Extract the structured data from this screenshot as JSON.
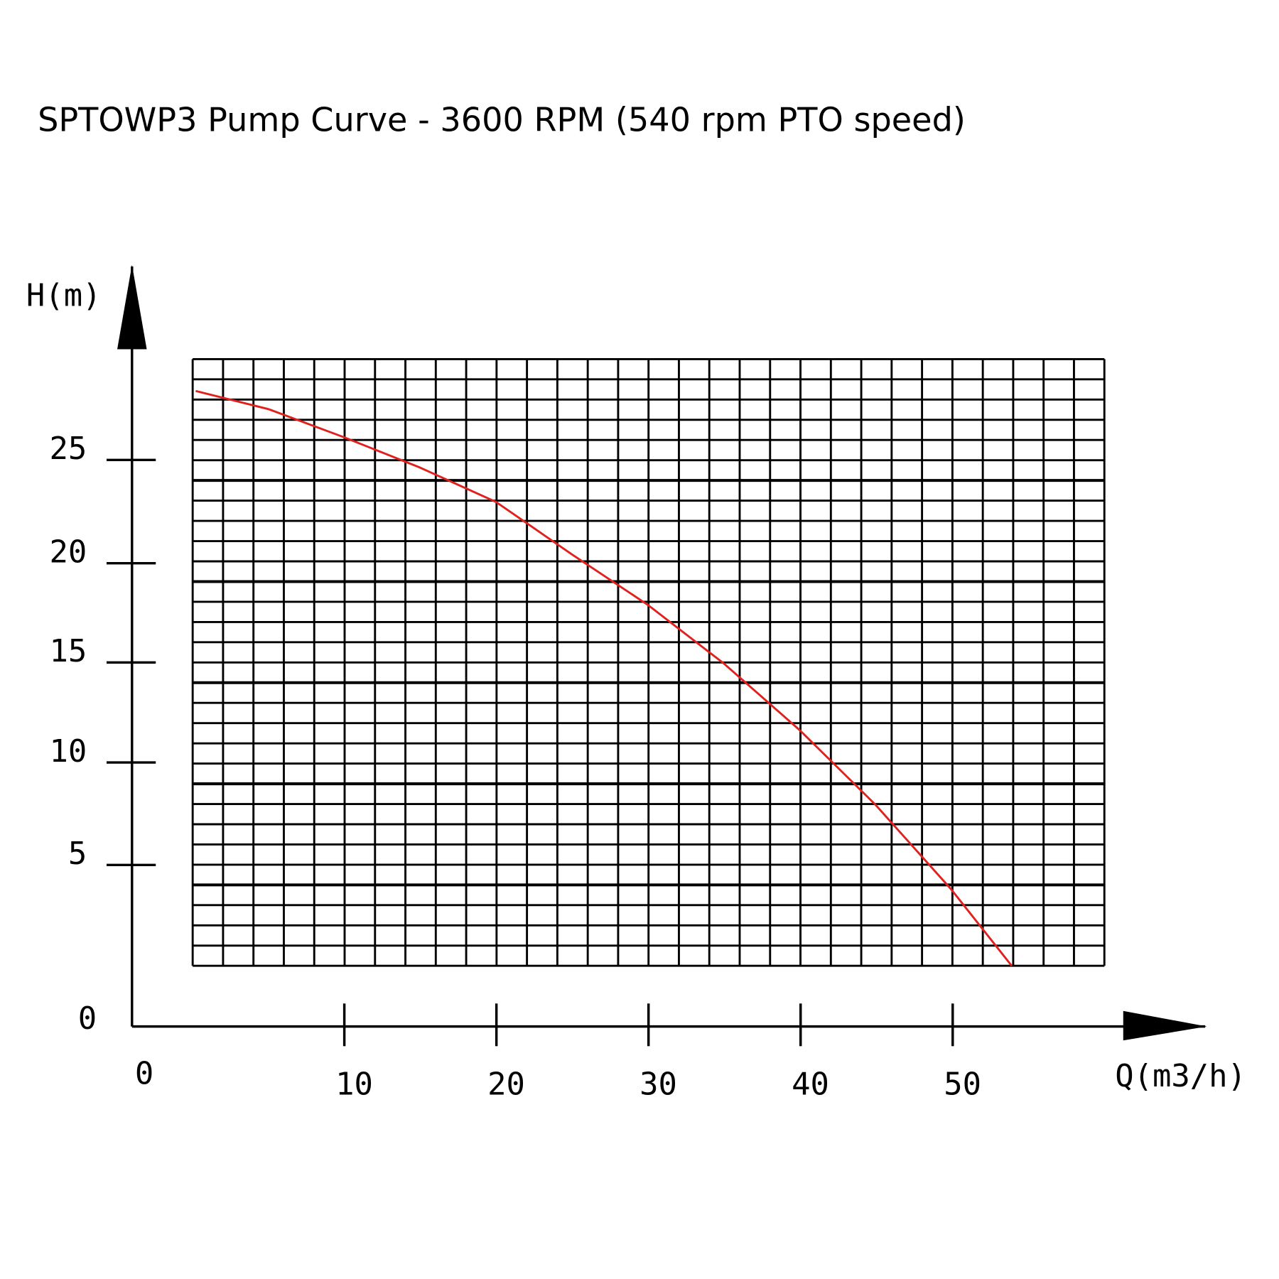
{
  "chart_data": {
    "type": "line",
    "title": "SPTOWP3 Pump Curve - 3600 RPM (540 rpm PTO speed)",
    "xlabel": "Q(m3/h)",
    "ylabel": "H(m)",
    "xlim": [
      0,
      60
    ],
    "ylim": [
      0,
      30
    ],
    "grid": true,
    "x_ticks": [
      0,
      10,
      20,
      30,
      40,
      50
    ],
    "x_tick_labels": [
      "0",
      "10",
      "20",
      "30",
      "40",
      "50"
    ],
    "y_ticks": [
      0,
      5,
      10,
      15,
      20,
      25
    ],
    "y_tick_labels": [
      "0",
      "5",
      "10",
      "15",
      "20",
      "25"
    ],
    "series": [
      {
        "name": "Pump curve",
        "color": "#e0201c",
        "x": [
          0.2,
          5,
          10,
          15,
          20,
          25,
          30,
          35,
          40,
          45,
          50,
          54
        ],
        "y": [
          28.5,
          27.6,
          26.2,
          24.7,
          23.0,
          20.4,
          17.9,
          15.0,
          11.7,
          8.0,
          3.8,
          0
        ]
      }
    ]
  }
}
